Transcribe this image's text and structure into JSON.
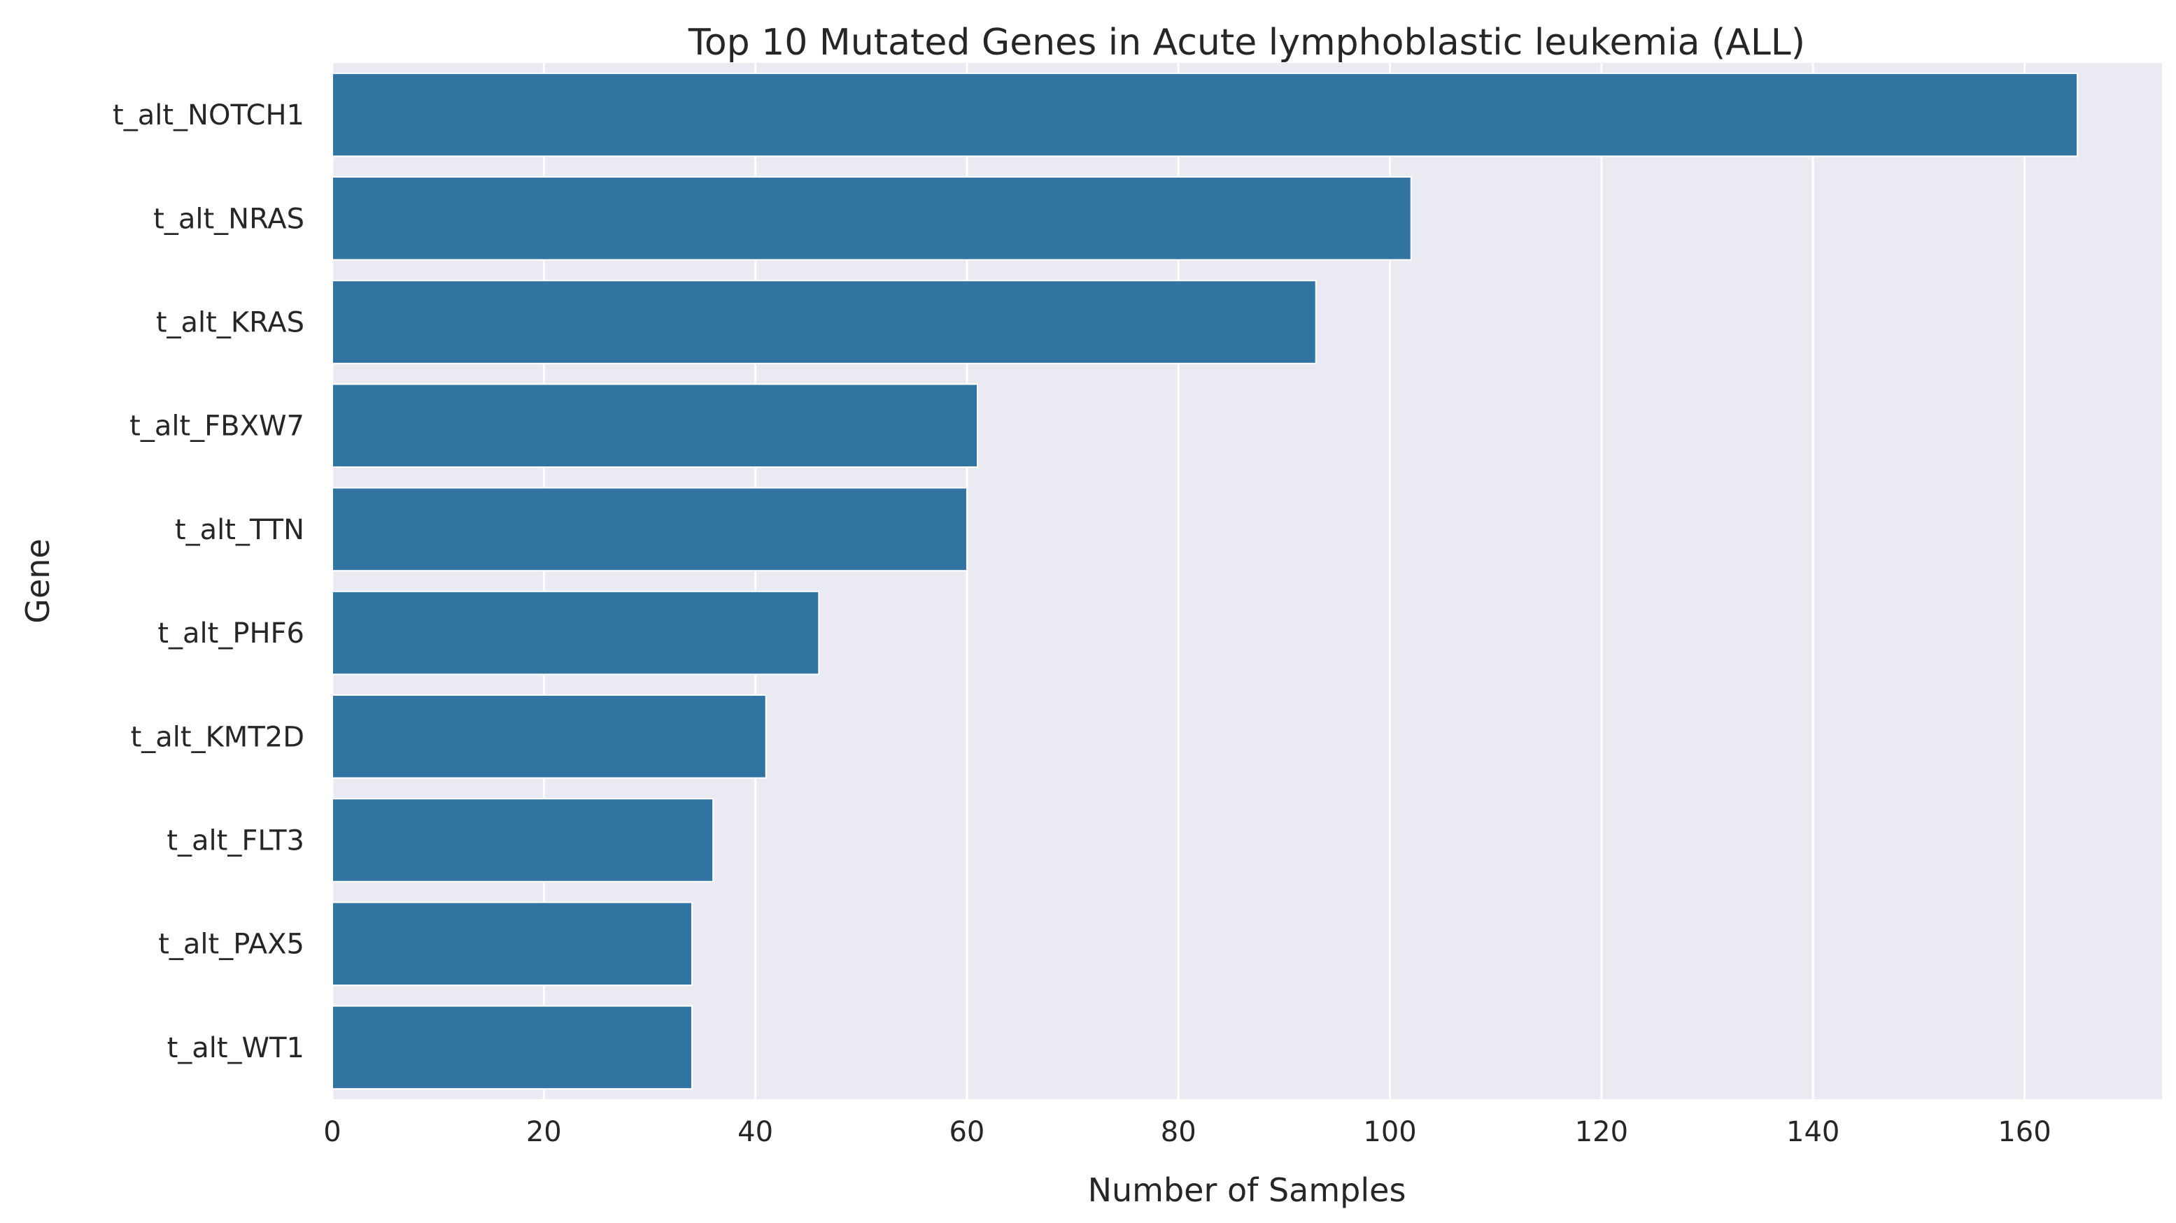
{
  "chart_data": {
    "type": "bar",
    "orientation": "horizontal",
    "title": "Top 10 Mutated Genes in Acute lymphoblastic leukemia (ALL)",
    "xlabel": "Number of Samples",
    "ylabel": "Gene",
    "categories": [
      "t_alt_NOTCH1",
      "t_alt_NRAS",
      "t_alt_KRAS",
      "t_alt_FBXW7",
      "t_alt_TTN",
      "t_alt_PHF6",
      "t_alt_KMT2D",
      "t_alt_FLT3",
      "t_alt_PAX5",
      "t_alt_WT1"
    ],
    "values": [
      165,
      102,
      93,
      61,
      60,
      46,
      41,
      36,
      34,
      34
    ],
    "xlim": [
      0,
      173
    ],
    "xticks": [
      0,
      20,
      40,
      60,
      80,
      100,
      120,
      140,
      160
    ],
    "grid": true,
    "colors": {
      "bar": "#3274a1",
      "background": "#eaeaf2",
      "grid": "#ffffff"
    }
  }
}
